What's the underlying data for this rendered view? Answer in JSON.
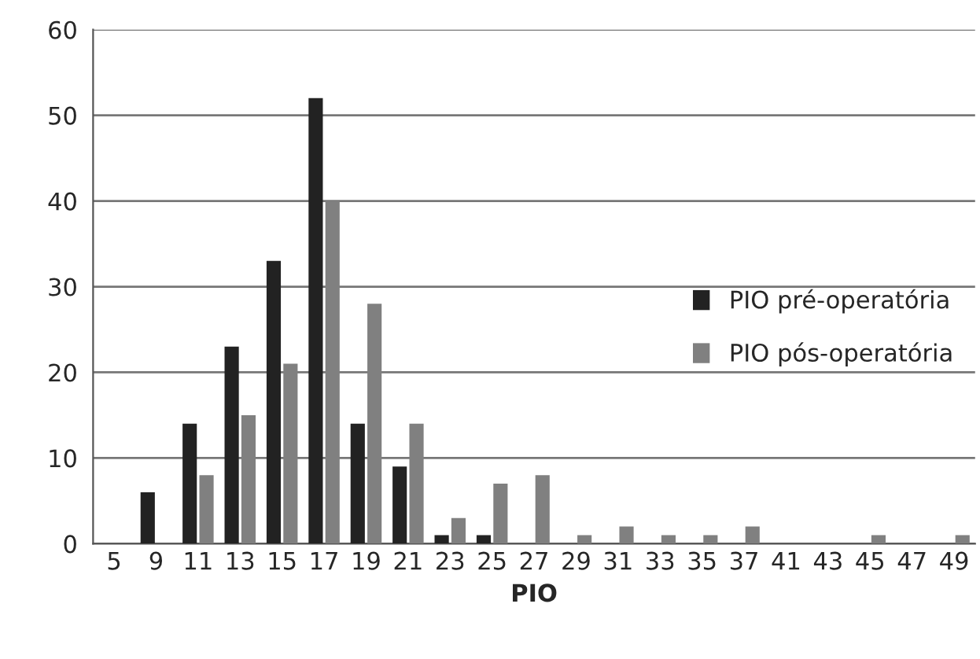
{
  "chart_data": {
    "type": "bar",
    "xlabel": "PIO",
    "categories": [
      "5",
      "9",
      "11",
      "13",
      "15",
      "17",
      "19",
      "21",
      "23",
      "25",
      "27",
      "29",
      "31",
      "33",
      "35",
      "37",
      "41",
      "43",
      "45",
      "47",
      "49"
    ],
    "series": [
      {
        "name": "PIO pré-operatória",
        "color": "#222222",
        "values": [
          0,
          6,
          14,
          23,
          33,
          52,
          14,
          9,
          1,
          1,
          0,
          0,
          0,
          0,
          0,
          0,
          0,
          0,
          0,
          0,
          0
        ]
      },
      {
        "name": "PIO pós-operatória",
        "color": "#808080",
        "values": [
          0,
          0,
          8,
          15,
          21,
          40,
          28,
          14,
          3,
          7,
          8,
          1,
          2,
          1,
          1,
          2,
          0,
          0,
          1,
          0,
          1
        ]
      }
    ],
    "ylim": [
      0,
      60
    ],
    "yticks": [
      0,
      10,
      20,
      30,
      40,
      50,
      60
    ],
    "grid": "y",
    "legend": "right"
  }
}
